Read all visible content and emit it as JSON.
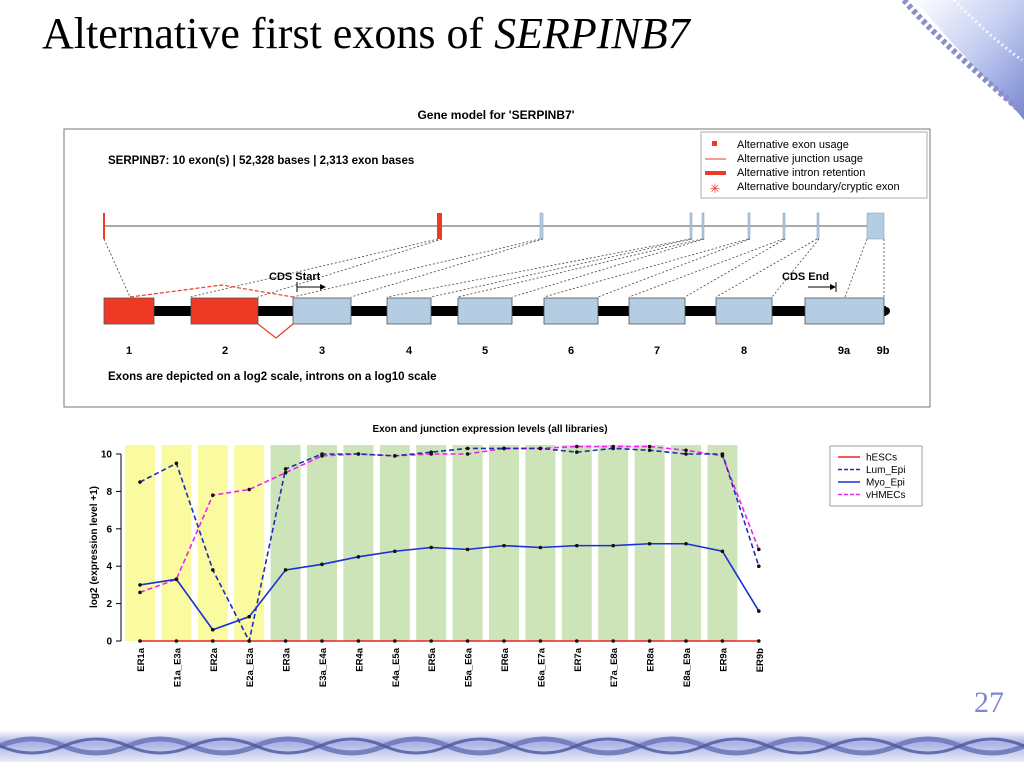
{
  "slide": {
    "title_main": "Alternative first exons of ",
    "title_gene": "SERPINB7",
    "page_number": "27"
  },
  "colors": {
    "alt_exon": "#ee3a24",
    "const_exon": "#b5cde2",
    "yellow_band": "#fafaa0",
    "green_band": "#cde4b8",
    "hESCs": "#ee2222",
    "Lum_Epi": "#1a2fb8",
    "Myo_Epi": "#1a2fd8",
    "vHMECs": "#ee22ee"
  },
  "gene_model": {
    "title": "Gene model for 'SERPINB7'",
    "summary": "SERPINB7:  10 exon(s) | 52,328 bases | 2,313 exon bases",
    "legend": [
      {
        "label": "Alternative exon usage",
        "icon": "red-square-icon"
      },
      {
        "label": "Alternative junction usage",
        "icon": "thin-red-line-icon"
      },
      {
        "label": "Alternative intron retention",
        "icon": "thick-red-line-icon"
      },
      {
        "label": "Alternative boundary/cryptic exon",
        "icon": "red-asterisk-icon"
      }
    ],
    "cds_start": "CDS Start",
    "cds_end": "CDS End",
    "exon_labels": [
      "1",
      "2",
      "3",
      "4",
      "5",
      "6",
      "7",
      "8",
      "9a",
      "9b"
    ],
    "footnote": "Exons are depicted on a log2 scale, introns on a log10 scale"
  },
  "chart_data": {
    "type": "line",
    "title": "Exon and junction expression levels (all libraries)",
    "ylabel": "log2 (expression level +1)",
    "xlabel": "",
    "ylim": [
      0,
      10.5
    ],
    "yticks": [
      0,
      2,
      4,
      6,
      8,
      10
    ],
    "categories": [
      "ER1a",
      "E1a_E3a",
      "ER2a",
      "E2a_E3a",
      "ER3a",
      "E3a_E4a",
      "ER4a",
      "E4a_E5a",
      "ER5a",
      "E5a_E6a",
      "ER6a",
      "E6a_E7a",
      "ER7a",
      "E7a_E8a",
      "ER8a",
      "E8a_E9a",
      "ER9a",
      "ER9b"
    ],
    "band_types": [
      "yellow",
      "yellow",
      "yellow",
      "yellow",
      "green",
      "green",
      "green",
      "green",
      "green",
      "green",
      "green",
      "green",
      "green",
      "green",
      "green",
      "green",
      "green",
      "none"
    ],
    "legend_position": "right",
    "series": [
      {
        "name": "hESCs",
        "style": "solid",
        "values": [
          0,
          0,
          0,
          0,
          0,
          0,
          0,
          0,
          0,
          0,
          0,
          0,
          0,
          0,
          0,
          0,
          0,
          0
        ]
      },
      {
        "name": "Lum_Epi",
        "style": "dashed",
        "values": [
          8.5,
          9.5,
          3.8,
          0,
          9.2,
          10.0,
          10.0,
          9.9,
          10.1,
          10.3,
          10.3,
          10.3,
          10.1,
          10.3,
          10.2,
          10.0,
          10.0,
          4.0
        ]
      },
      {
        "name": "Myo_Epi",
        "style": "solid",
        "values": [
          3.0,
          3.3,
          0.6,
          1.3,
          3.8,
          4.1,
          4.5,
          4.8,
          5.0,
          4.9,
          5.1,
          5.0,
          5.1,
          5.1,
          5.2,
          5.2,
          4.8,
          1.6
        ]
      },
      {
        "name": "vHMECs",
        "style": "dashed",
        "values": [
          2.6,
          3.3,
          7.8,
          8.1,
          9.0,
          9.9,
          10.0,
          9.9,
          10.0,
          10.0,
          10.3,
          10.3,
          10.4,
          10.4,
          10.4,
          10.2,
          9.9,
          4.9
        ]
      }
    ]
  }
}
